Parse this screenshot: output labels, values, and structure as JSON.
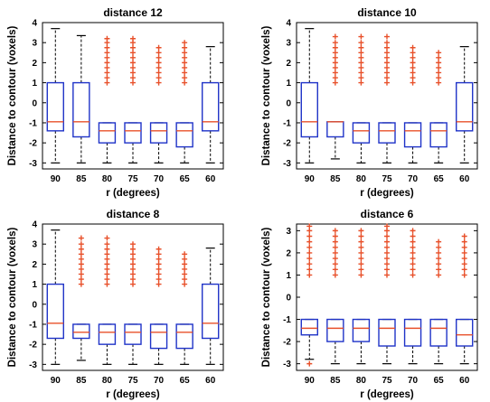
{
  "chart_data": [
    {
      "type": "boxplot",
      "title": "distance 12",
      "xlabel": "r (degrees)",
      "ylabel": "Distance to contour (voxels)",
      "categories": [
        "90",
        "85",
        "80",
        "75",
        "70",
        "65",
        "60"
      ],
      "ylim": [
        -3.3,
        4
      ],
      "yticks": [
        -3,
        -2,
        -1,
        0,
        1,
        2,
        3,
        4
      ],
      "boxes": [
        {
          "whisker_low": -3.0,
          "q1": -1.4,
          "median": -0.95,
          "q3": 1.0,
          "whisker_high": 3.7,
          "outliers": []
        },
        {
          "whisker_low": -3.0,
          "q1": -1.7,
          "median": -0.95,
          "q3": 1.0,
          "whisker_high": 3.35,
          "outliers": []
        },
        {
          "whisker_low": -3.0,
          "q1": -2.0,
          "median": -1.4,
          "q3": -1.0,
          "whisker_high": -1.0,
          "outliers": [
            1.0,
            1.25,
            1.5,
            1.75,
            2.0,
            2.25,
            2.5,
            2.75,
            3.0,
            3.2
          ]
        },
        {
          "whisker_low": -3.0,
          "q1": -2.0,
          "median": -1.4,
          "q3": -1.0,
          "whisker_high": -1.0,
          "outliers": [
            1.0,
            1.25,
            1.5,
            1.75,
            2.0,
            2.25,
            2.5,
            2.75,
            3.0,
            3.2
          ]
        },
        {
          "whisker_low": -3.0,
          "q1": -2.0,
          "median": -1.4,
          "q3": -1.0,
          "whisker_high": -1.0,
          "outliers": [
            1.0,
            1.25,
            1.5,
            1.75,
            2.0,
            2.25,
            2.5,
            2.75
          ]
        },
        {
          "whisker_low": -3.0,
          "q1": -2.2,
          "median": -1.4,
          "q3": -1.0,
          "whisker_high": -1.0,
          "outliers": [
            1.0,
            1.25,
            1.5,
            1.75,
            2.0,
            2.25,
            2.5,
            2.75,
            3.0
          ]
        },
        {
          "whisker_low": -3.0,
          "q1": -1.4,
          "median": -0.95,
          "q3": 1.0,
          "whisker_high": 2.8,
          "outliers": []
        }
      ]
    },
    {
      "type": "boxplot",
      "title": "distance 10",
      "xlabel": "r (degrees)",
      "ylabel": "Distance to contour (voxels)",
      "categories": [
        "90",
        "85",
        "80",
        "75",
        "70",
        "65",
        "60"
      ],
      "ylim": [
        -3.3,
        4
      ],
      "yticks": [
        -3,
        -2,
        -1,
        0,
        1,
        2,
        3,
        4
      ],
      "boxes": [
        {
          "whisker_low": -3.0,
          "q1": -1.7,
          "median": -0.95,
          "q3": 1.0,
          "whisker_high": 3.7,
          "outliers": []
        },
        {
          "whisker_low": -2.8,
          "q1": -1.7,
          "median": -0.95,
          "q3": -0.95,
          "whisker_high": -0.95,
          "outliers": [
            1.0,
            1.25,
            1.5,
            1.75,
            2.0,
            2.25,
            2.5,
            2.75,
            3.0,
            3.3
          ]
        },
        {
          "whisker_low": -3.0,
          "q1": -2.0,
          "median": -1.4,
          "q3": -1.0,
          "whisker_high": -1.0,
          "outliers": [
            1.0,
            1.25,
            1.5,
            1.75,
            2.0,
            2.25,
            2.5,
            2.75,
            3.0,
            3.3
          ]
        },
        {
          "whisker_low": -3.0,
          "q1": -2.0,
          "median": -1.4,
          "q3": -1.0,
          "whisker_high": -1.0,
          "outliers": [
            1.0,
            1.25,
            1.5,
            1.75,
            2.0,
            2.25,
            2.5,
            2.75,
            3.0,
            3.3
          ]
        },
        {
          "whisker_low": -3.0,
          "q1": -2.2,
          "median": -1.4,
          "q3": -1.0,
          "whisker_high": -1.0,
          "outliers": [
            1.0,
            1.25,
            1.5,
            1.75,
            2.0,
            2.25,
            2.5,
            2.75
          ]
        },
        {
          "whisker_low": -3.0,
          "q1": -2.2,
          "median": -1.4,
          "q3": -1.0,
          "whisker_high": -1.0,
          "outliers": [
            1.0,
            1.25,
            1.5,
            1.75,
            2.0,
            2.25,
            2.5
          ]
        },
        {
          "whisker_low": -3.0,
          "q1": -1.4,
          "median": -0.95,
          "q3": 1.0,
          "whisker_high": 2.8,
          "outliers": []
        }
      ]
    },
    {
      "type": "boxplot",
      "title": "distance 8",
      "xlabel": "r (degrees)",
      "ylabel": "Distance to contour (voxels)",
      "categories": [
        "90",
        "85",
        "80",
        "75",
        "70",
        "65",
        "60"
      ],
      "ylim": [
        -3.3,
        4
      ],
      "yticks": [
        -3,
        -2,
        -1,
        0,
        1,
        2,
        3,
        4
      ],
      "boxes": [
        {
          "whisker_low": -3.0,
          "q1": -1.7,
          "median": -0.95,
          "q3": 1.0,
          "whisker_high": 3.7,
          "outliers": []
        },
        {
          "whisker_low": -2.8,
          "q1": -1.7,
          "median": -1.4,
          "q3": -1.0,
          "whisker_high": -1.0,
          "outliers": [
            1.0,
            1.25,
            1.5,
            1.75,
            2.0,
            2.25,
            2.5,
            2.75,
            3.0,
            3.3
          ]
        },
        {
          "whisker_low": -3.0,
          "q1": -2.0,
          "median": -1.4,
          "q3": -1.0,
          "whisker_high": -1.0,
          "outliers": [
            1.0,
            1.25,
            1.5,
            1.75,
            2.0,
            2.25,
            2.5,
            2.75,
            3.0,
            3.3
          ]
        },
        {
          "whisker_low": -3.0,
          "q1": -2.0,
          "median": -1.4,
          "q3": -1.0,
          "whisker_high": -1.0,
          "outliers": [
            1.0,
            1.25,
            1.5,
            1.75,
            2.0,
            2.25,
            2.5,
            2.75,
            3.0
          ]
        },
        {
          "whisker_low": -3.0,
          "q1": -2.2,
          "median": -1.4,
          "q3": -1.0,
          "whisker_high": -1.0,
          "outliers": [
            1.0,
            1.25,
            1.5,
            1.75,
            2.0,
            2.25,
            2.5,
            2.75
          ]
        },
        {
          "whisker_low": -3.0,
          "q1": -2.2,
          "median": -1.4,
          "q3": -1.0,
          "whisker_high": -1.0,
          "outliers": [
            1.0,
            1.25,
            1.5,
            1.75,
            2.0,
            2.25,
            2.5
          ]
        },
        {
          "whisker_low": -3.0,
          "q1": -1.7,
          "median": -0.95,
          "q3": 1.0,
          "whisker_high": 2.8,
          "outliers": []
        }
      ]
    },
    {
      "type": "boxplot",
      "title": "distance 6",
      "xlabel": "r (degrees)",
      "ylabel": "Distance to contour (voxels)",
      "categories": [
        "90",
        "85",
        "80",
        "75",
        "70",
        "65",
        "60"
      ],
      "ylim": [
        -3.3,
        3.3
      ],
      "yticks": [
        -3,
        -2,
        -1,
        0,
        1,
        2,
        3
      ],
      "boxes": [
        {
          "whisker_low": -2.8,
          "q1": -1.7,
          "median": -1.4,
          "q3": -1.0,
          "whisker_high": -1.0,
          "outliers": [
            -3.0,
            1.0,
            1.25,
            1.5,
            1.75,
            2.0,
            2.25,
            2.5,
            2.75,
            3.0,
            3.2
          ]
        },
        {
          "whisker_low": -3.0,
          "q1": -2.0,
          "median": -1.4,
          "q3": -1.0,
          "whisker_high": -1.0,
          "outliers": [
            1.0,
            1.25,
            1.5,
            1.75,
            2.0,
            2.25,
            2.5,
            2.75,
            3.0
          ]
        },
        {
          "whisker_low": -3.0,
          "q1": -2.0,
          "median": -1.4,
          "q3": -1.0,
          "whisker_high": -1.0,
          "outliers": [
            1.0,
            1.25,
            1.5,
            1.75,
            2.0,
            2.25,
            2.5,
            2.75,
            3.0
          ]
        },
        {
          "whisker_low": -3.0,
          "q1": -2.2,
          "median": -1.4,
          "q3": -1.0,
          "whisker_high": -1.0,
          "outliers": [
            1.0,
            1.25,
            1.5,
            1.75,
            2.0,
            2.25,
            2.5,
            2.75,
            3.0,
            3.2
          ]
        },
        {
          "whisker_low": -3.0,
          "q1": -2.2,
          "median": -1.4,
          "q3": -1.0,
          "whisker_high": -1.0,
          "outliers": [
            1.0,
            1.25,
            1.5,
            1.75,
            2.0,
            2.25,
            2.5,
            2.75,
            3.0
          ]
        },
        {
          "whisker_low": -3.0,
          "q1": -2.2,
          "median": -1.4,
          "q3": -1.0,
          "whisker_high": -1.0,
          "outliers": [
            1.0,
            1.25,
            1.5,
            1.75,
            2.0,
            2.25,
            2.5
          ]
        },
        {
          "whisker_low": -3.0,
          "q1": -2.2,
          "median": -1.7,
          "q3": -1.0,
          "whisker_high": -1.0,
          "outliers": [
            1.0,
            1.25,
            1.5,
            1.75,
            2.0,
            2.25,
            2.5,
            2.75
          ]
        }
      ]
    }
  ],
  "colors": {
    "box": "#1f33c8",
    "median": "#e8502a",
    "outlier": "#e8502a",
    "whisker": "#000000"
  }
}
